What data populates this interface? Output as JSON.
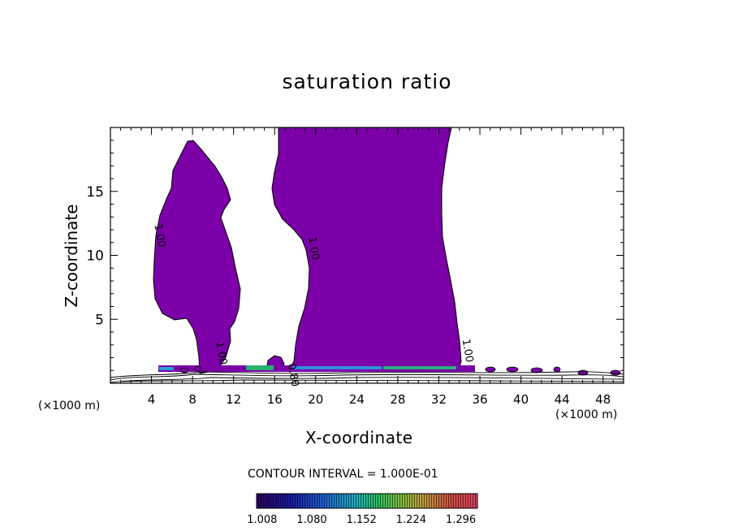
{
  "chart_data": {
    "type": "heatmap",
    "title": "saturation ratio",
    "xlabel": "X-coordinate",
    "ylabel": "Z-coordinate",
    "x_unit": "(×1000 m)",
    "y_unit": "(×1000 m)",
    "xlim": [
      0,
      50
    ],
    "ylim": [
      0,
      20
    ],
    "x_ticks": [
      "4",
      "8",
      "12",
      "16",
      "20",
      "24",
      "28",
      "32",
      "36",
      "40",
      "44",
      "48"
    ],
    "y_ticks": [
      "5",
      "10",
      "15"
    ],
    "contour_labels": [
      {
        "text": "1.00",
        "x": 4.5,
        "z": 11.5
      },
      {
        "text": "1.00",
        "x": 19.5,
        "z": 10.5
      },
      {
        "text": "1.00",
        "x": 10.5,
        "z": 2.3
      },
      {
        "text": "1.00",
        "x": 34.5,
        "z": 2.5
      },
      {
        "text": "0.80",
        "x": 17.5,
        "z": 0.6
      }
    ],
    "contour_interval_text": "CONTOUR INTERVAL = 1.000E-01",
    "colorbar_ticks": [
      "1.008",
      "1.080",
      "1.152",
      "1.224",
      "1.296"
    ],
    "colorbar_range": [
      1.0,
      1.32
    ],
    "colors": {
      "fill": "#7b00a8",
      "frame": "#000000"
    },
    "regions": [
      {
        "name": "left-plume",
        "z_min": 0.5,
        "z_max": 18.8,
        "x_min": 4.2,
        "x_max": 12.3
      },
      {
        "name": "main-plume",
        "z_min": 0.5,
        "z_max": 20.0,
        "x_min": 15.7,
        "x_max": 34.9
      }
    ]
  }
}
